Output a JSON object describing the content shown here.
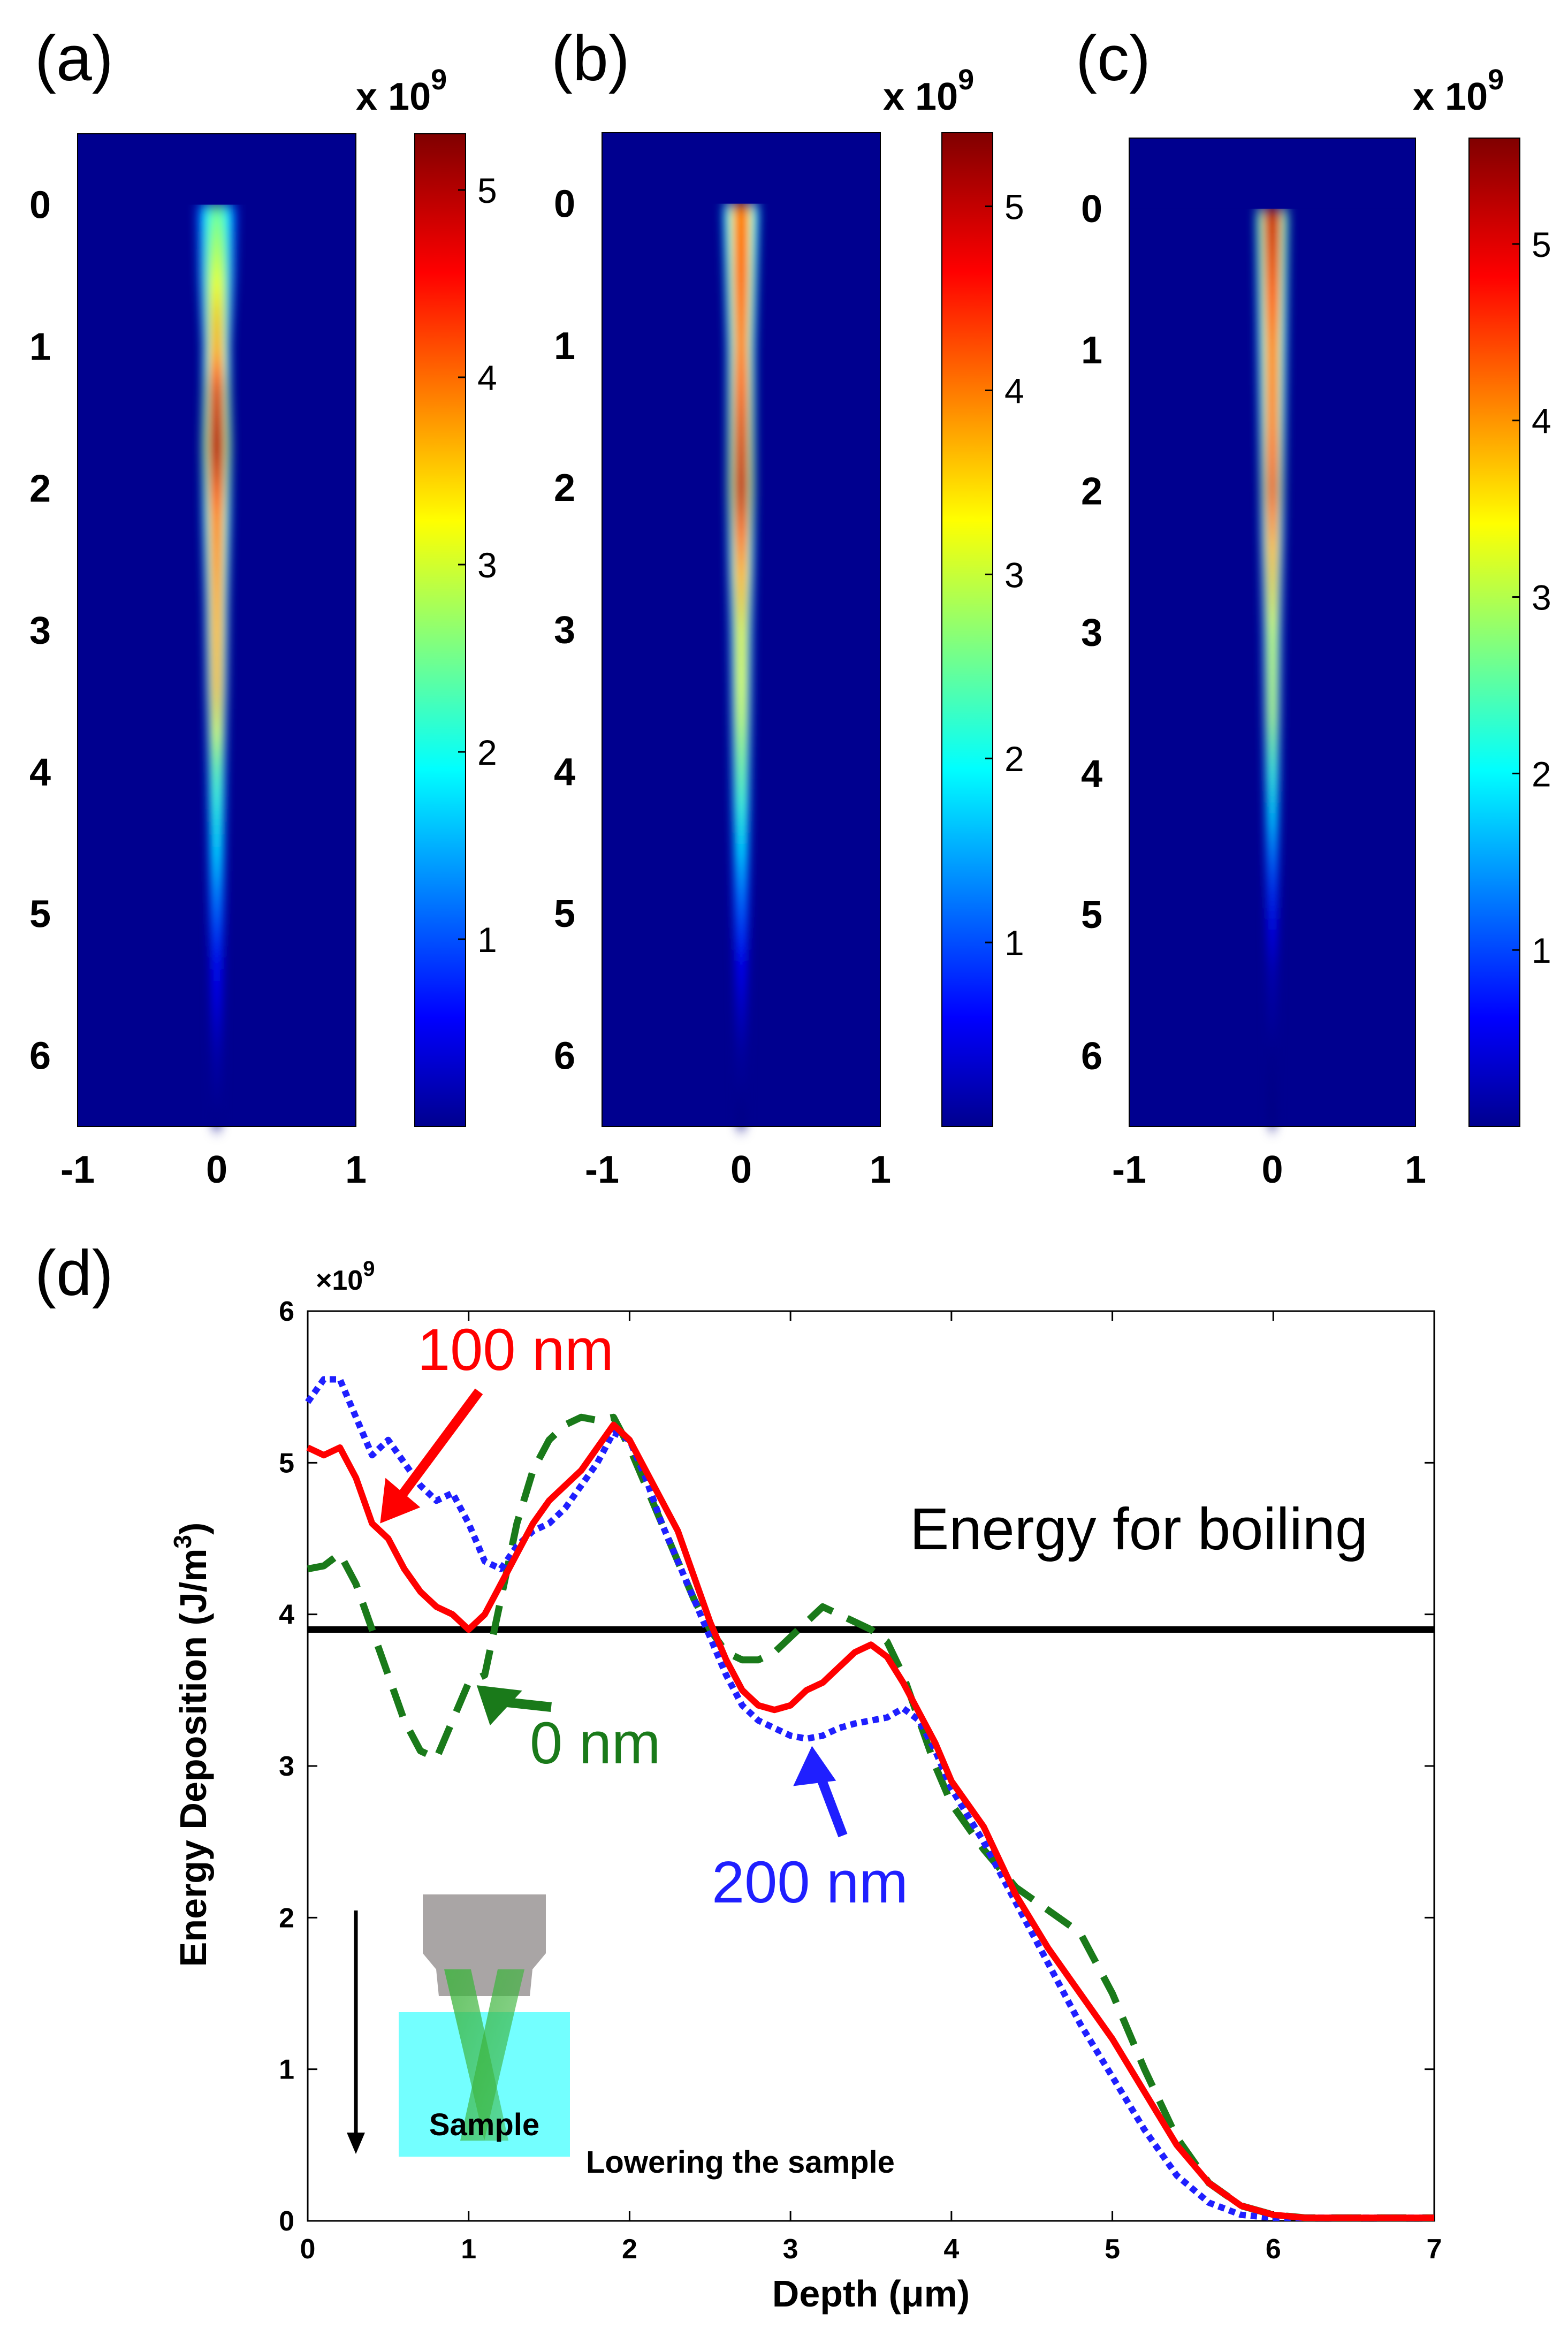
{
  "panel_labels": [
    "(a)",
    "(b)",
    "(c)",
    "(d)"
  ],
  "colors": {
    "curve_100nm": "#ff0000",
    "curve_200nm": "#1f1fff",
    "curve_0nm": "#1a7a1a",
    "threshold": "#000000"
  },
  "chart_data": [
    {
      "type": "heatmap",
      "panel": "(a)",
      "x_ticks": [
        "-1",
        "0",
        "1"
      ],
      "y_ticks": [
        "0",
        "1",
        "2",
        "3",
        "4",
        "5",
        "6"
      ],
      "xlim": [
        -1,
        1
      ],
      "ylim": [
        -0.5,
        6.5
      ],
      "colorbar": {
        "ticks": [
          "1",
          "2",
          "3",
          "4",
          "5"
        ],
        "range": [
          0,
          5.3
        ],
        "exponent": "x 10",
        "exponent_power": "9"
      },
      "beam_profile": [
        {
          "depth": 0.0,
          "width": 0.09,
          "peak": 2.5
        },
        {
          "depth": 0.5,
          "width": 0.08,
          "peak": 3.2
        },
        {
          "depth": 1.0,
          "width": 0.06,
          "peak": 4.0
        },
        {
          "depth": 1.3,
          "width": 0.06,
          "peak": 4.9
        },
        {
          "depth": 1.7,
          "width": 0.065,
          "peak": 5.3
        },
        {
          "depth": 2.2,
          "width": 0.06,
          "peak": 4.4
        },
        {
          "depth": 2.8,
          "width": 0.05,
          "peak": 4.2
        },
        {
          "depth": 3.4,
          "width": 0.045,
          "peak": 4.0
        },
        {
          "depth": 4.0,
          "width": 0.04,
          "peak": 2.7
        },
        {
          "depth": 4.7,
          "width": 0.035,
          "peak": 1.8
        },
        {
          "depth": 5.3,
          "width": 0.03,
          "peak": 0.9
        },
        {
          "depth": 6.0,
          "width": 0.025,
          "peak": 0.3
        },
        {
          "depth": 6.5,
          "width": 0.02,
          "peak": 0.05
        }
      ]
    },
    {
      "type": "heatmap",
      "panel": "(b)",
      "x_ticks": [
        "-1",
        "0",
        "1"
      ],
      "y_ticks": [
        "0",
        "1",
        "2",
        "3",
        "4",
        "5",
        "6"
      ],
      "xlim": [
        -1,
        1
      ],
      "ylim": [
        -0.5,
        6.5
      ],
      "colorbar": {
        "ticks": [
          "1",
          "2",
          "3",
          "4",
          "5"
        ],
        "range": [
          0,
          5.4
        ],
        "exponent": "x 10",
        "exponent_power": "9"
      },
      "beam_profile": [
        {
          "depth": 0.0,
          "width": 0.08,
          "peak": 4.4
        },
        {
          "depth": 0.5,
          "width": 0.07,
          "peak": 4.6
        },
        {
          "depth": 1.0,
          "width": 0.06,
          "peak": 4.5
        },
        {
          "depth": 1.5,
          "width": 0.06,
          "peak": 4.9
        },
        {
          "depth": 2.0,
          "width": 0.06,
          "peak": 5.3
        },
        {
          "depth": 2.5,
          "width": 0.055,
          "peak": 4.4
        },
        {
          "depth": 3.0,
          "width": 0.05,
          "peak": 3.5
        },
        {
          "depth": 3.6,
          "width": 0.045,
          "peak": 3.3
        },
        {
          "depth": 4.2,
          "width": 0.04,
          "peak": 2.6
        },
        {
          "depth": 4.8,
          "width": 0.035,
          "peak": 1.6
        },
        {
          "depth": 5.4,
          "width": 0.03,
          "peak": 0.7
        },
        {
          "depth": 6.0,
          "width": 0.025,
          "peak": 0.2
        },
        {
          "depth": 6.5,
          "width": 0.02,
          "peak": 0.02
        }
      ]
    },
    {
      "type": "heatmap",
      "panel": "(c)",
      "x_ticks": [
        "-1",
        "0",
        "1"
      ],
      "y_ticks": [
        "0",
        "1",
        "2",
        "3",
        "4",
        "5",
        "6"
      ],
      "xlim": [
        -1,
        1
      ],
      "ylim": [
        -0.5,
        6.5
      ],
      "colorbar": {
        "ticks": [
          "1",
          "2",
          "3",
          "4",
          "5"
        ],
        "range": [
          0,
          5.6
        ],
        "exponent": "x 10",
        "exponent_power": "9"
      },
      "beam_profile": [
        {
          "depth": 0.0,
          "width": 0.07,
          "peak": 5.4
        },
        {
          "depth": 0.5,
          "width": 0.065,
          "peak": 5.0
        },
        {
          "depth": 1.0,
          "width": 0.06,
          "peak": 4.6
        },
        {
          "depth": 1.5,
          "width": 0.055,
          "peak": 4.7
        },
        {
          "depth": 2.0,
          "width": 0.05,
          "peak": 5.1
        },
        {
          "depth": 2.5,
          "width": 0.045,
          "peak": 4.2
        },
        {
          "depth": 3.0,
          "width": 0.04,
          "peak": 3.4
        },
        {
          "depth": 3.6,
          "width": 0.035,
          "peak": 3.3
        },
        {
          "depth": 4.2,
          "width": 0.03,
          "peak": 2.3
        },
        {
          "depth": 4.8,
          "width": 0.025,
          "peak": 1.2
        },
        {
          "depth": 5.4,
          "width": 0.02,
          "peak": 0.4
        },
        {
          "depth": 6.0,
          "width": 0.018,
          "peak": 0.08
        },
        {
          "depth": 6.5,
          "width": 0.015,
          "peak": 0.0
        }
      ]
    },
    {
      "type": "line",
      "panel": "(d)",
      "xlabel": "Depth (μm)",
      "ylabel": "Energy Deposition (J/m",
      "ylabel_sup": "3",
      "ylabel_close": ")",
      "xlim": [
        0,
        7
      ],
      "ylim": [
        0,
        6
      ],
      "x_ticks": [
        "0",
        "1",
        "2",
        "3",
        "4",
        "5",
        "6",
        "7"
      ],
      "y_ticks": [
        "0",
        "1",
        "2",
        "3",
        "4",
        "5",
        "6"
      ],
      "y_exponent": "×10",
      "y_exponent_power": "9",
      "threshold": {
        "value": 3.9,
        "label": "Energy for boiling"
      },
      "series": [
        {
          "name": "100 nm",
          "style": "solid",
          "x": [
            0,
            0.1,
            0.2,
            0.3,
            0.4,
            0.5,
            0.6,
            0.7,
            0.8,
            0.9,
            1.0,
            1.1,
            1.2,
            1.3,
            1.4,
            1.5,
            1.6,
            1.7,
            1.8,
            1.9,
            2.0,
            2.1,
            2.2,
            2.3,
            2.4,
            2.5,
            2.6,
            2.7,
            2.8,
            2.9,
            3.0,
            3.1,
            3.2,
            3.3,
            3.4,
            3.5,
            3.6,
            3.7,
            3.8,
            3.9,
            4.0,
            4.2,
            4.4,
            4.6,
            4.8,
            5.0,
            5.2,
            5.4,
            5.6,
            5.8,
            6.0,
            6.2,
            6.5,
            7.0
          ],
          "y": [
            5.1,
            5.05,
            5.1,
            4.9,
            4.6,
            4.5,
            4.3,
            4.15,
            4.05,
            4.0,
            3.9,
            4.0,
            4.2,
            4.4,
            4.6,
            4.75,
            4.85,
            4.95,
            5.1,
            5.25,
            5.15,
            4.95,
            4.75,
            4.55,
            4.25,
            3.95,
            3.7,
            3.5,
            3.4,
            3.37,
            3.4,
            3.5,
            3.55,
            3.65,
            3.75,
            3.8,
            3.72,
            3.55,
            3.35,
            3.15,
            2.9,
            2.6,
            2.15,
            1.8,
            1.5,
            1.2,
            0.85,
            0.5,
            0.25,
            0.1,
            0.04,
            0.02,
            0.02,
            0.02
          ]
        },
        {
          "name": "200 nm",
          "style": "dotted",
          "x": [
            0,
            0.1,
            0.2,
            0.3,
            0.4,
            0.5,
            0.6,
            0.7,
            0.8,
            0.9,
            1.0,
            1.1,
            1.2,
            1.3,
            1.4,
            1.5,
            1.6,
            1.7,
            1.8,
            1.9,
            2.0,
            2.1,
            2.2,
            2.3,
            2.4,
            2.5,
            2.6,
            2.7,
            2.8,
            2.9,
            3.0,
            3.1,
            3.2,
            3.3,
            3.4,
            3.5,
            3.6,
            3.7,
            3.8,
            3.9,
            4.0,
            4.2,
            4.4,
            4.6,
            4.8,
            5.0,
            5.2,
            5.4,
            5.6,
            5.8,
            6.0,
            6.2,
            6.5,
            7.0
          ],
          "y": [
            5.4,
            5.55,
            5.55,
            5.3,
            5.05,
            5.15,
            5.0,
            4.85,
            4.75,
            4.8,
            4.6,
            4.35,
            4.3,
            4.45,
            4.55,
            4.6,
            4.7,
            4.85,
            5.0,
            5.2,
            5.15,
            4.9,
            4.6,
            4.35,
            4.1,
            3.85,
            3.6,
            3.4,
            3.3,
            3.25,
            3.2,
            3.18,
            3.2,
            3.25,
            3.28,
            3.3,
            3.32,
            3.38,
            3.3,
            3.1,
            2.85,
            2.5,
            2.1,
            1.7,
            1.3,
            0.95,
            0.6,
            0.3,
            0.12,
            0.04,
            0.02,
            0.02,
            0.02,
            0.02
          ]
        },
        {
          "name": "0 nm",
          "style": "dashed",
          "x": [
            0,
            0.1,
            0.2,
            0.3,
            0.4,
            0.5,
            0.6,
            0.7,
            0.8,
            0.9,
            1.0,
            1.1,
            1.2,
            1.3,
            1.4,
            1.5,
            1.6,
            1.7,
            1.8,
            1.9,
            2.0,
            2.1,
            2.2,
            2.3,
            2.4,
            2.5,
            2.6,
            2.7,
            2.8,
            2.9,
            3.0,
            3.1,
            3.2,
            3.3,
            3.4,
            3.5,
            3.6,
            3.7,
            3.8,
            3.9,
            4.0,
            4.2,
            4.4,
            4.6,
            4.8,
            5.0,
            5.2,
            5.4,
            5.6,
            5.8,
            6.0,
            6.2,
            6.5,
            7.0
          ],
          "y": [
            4.3,
            4.32,
            4.4,
            4.2,
            3.9,
            3.6,
            3.3,
            3.1,
            3.05,
            3.3,
            3.55,
            3.6,
            4.1,
            4.6,
            4.95,
            5.15,
            5.25,
            5.3,
            5.28,
            5.3,
            5.1,
            4.85,
            4.6,
            4.35,
            4.1,
            3.9,
            3.75,
            3.7,
            3.7,
            3.75,
            3.85,
            3.95,
            4.05,
            4.0,
            3.95,
            3.9,
            3.82,
            3.6,
            3.3,
            3.0,
            2.75,
            2.45,
            2.2,
            2.05,
            1.9,
            1.5,
            1.0,
            0.55,
            0.25,
            0.1,
            0.04,
            0.02,
            0.02,
            0.02
          ]
        }
      ],
      "annotations": [
        {
          "text": "100 nm",
          "series": "100 nm",
          "arrow_to": [
            0.45,
            4.6
          ]
        },
        {
          "text": "0 nm",
          "series": "0 nm",
          "arrow_to": [
            1.05,
            3.55
          ]
        },
        {
          "text": "200 nm",
          "series": "200 nm",
          "arrow_to": [
            3.15,
            3.15
          ]
        }
      ],
      "inset": {
        "sample_label": "Sample",
        "caption": "Lowering the sample"
      }
    }
  ]
}
